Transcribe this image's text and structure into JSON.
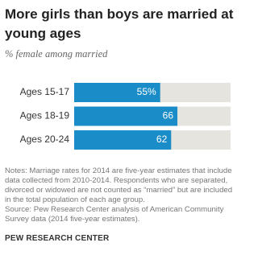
{
  "chart_data": {
    "type": "bar",
    "orientation": "horizontal",
    "title": "More girls than boys are married at young ages",
    "subtitle": "% female among married",
    "categories": [
      "Ages 15-17",
      "Ages 18-19",
      "Ages 20-24"
    ],
    "values": [
      55,
      66,
      62
    ],
    "value_labels": [
      "55%",
      "66",
      "62"
    ],
    "color": "#1a8cc7",
    "background_color": "#e6e4de",
    "xlim": [
      0,
      100
    ],
    "notes": "Notes: Marriage rates for 2014 are five-year estimates that include data collected from 2010-2014. Respondents who are separated, divorced or widowed are not counted as “married” but are included in the total population of each age group.",
    "source": "Source: Pew Research Center analysis of American Community Survey data (2014 five-year estimates).",
    "credit": "PEW RESEARCH CENTER"
  }
}
